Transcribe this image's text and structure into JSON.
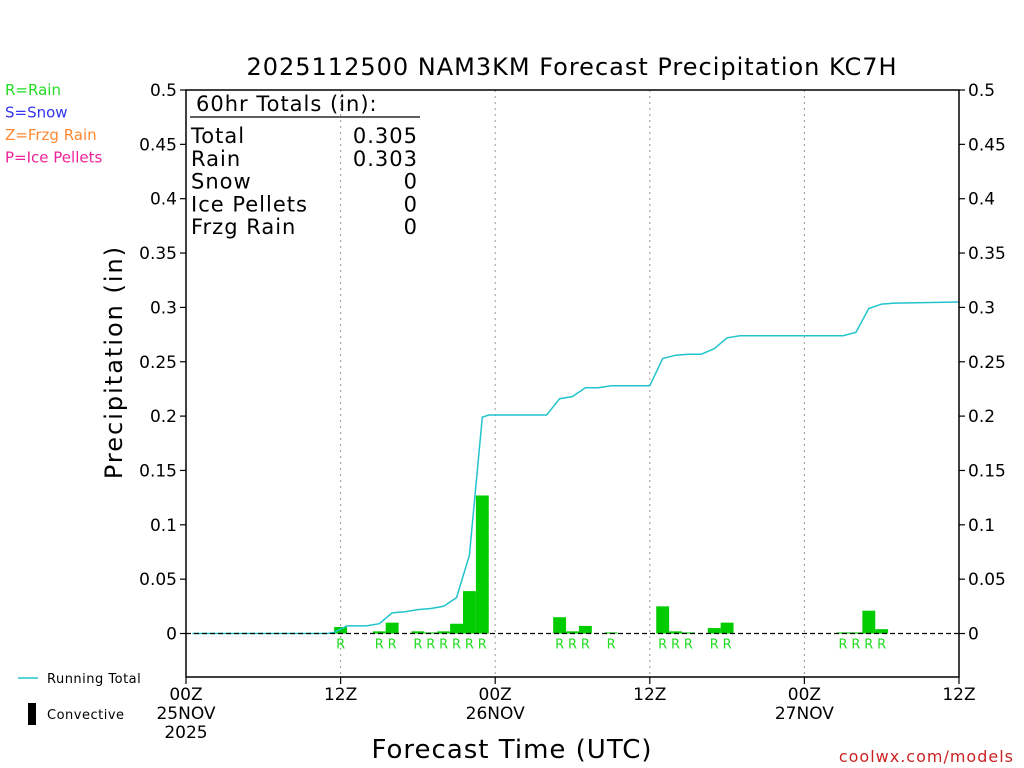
{
  "chart_data": {
    "type": "bar",
    "title": "2025112500 NAM3KM Forecast Precipitation KC7H",
    "xlabel": "Forecast Time (UTC)",
    "ylabel": "Precipitation (in)",
    "ylim": [
      -0.04,
      0.5
    ],
    "xlim": [
      0,
      60
    ],
    "y_ticks": [
      0,
      0.05,
      0.1,
      0.15,
      0.2,
      0.25,
      0.3,
      0.35,
      0.4,
      0.45,
      0.5
    ],
    "y_tick_labels": [
      "0",
      "0.05",
      "0.1",
      "0.15",
      "0.2",
      "0.25",
      "0.3",
      "0.35",
      "0.4",
      "0.45",
      "0.5"
    ],
    "x_ticks": [
      {
        "hour": 0,
        "lines": [
          "00Z",
          "25NOV",
          "2025"
        ]
      },
      {
        "hour": 12,
        "lines": [
          "12Z"
        ]
      },
      {
        "hour": 24,
        "lines": [
          "00Z",
          "26NOV"
        ]
      },
      {
        "hour": 36,
        "lines": [
          "12Z"
        ]
      },
      {
        "hour": 48,
        "lines": [
          "00Z",
          "27NOV"
        ]
      },
      {
        "hour": 60,
        "lines": [
          "12Z"
        ]
      }
    ],
    "gridlines_x": [
      12,
      24,
      36,
      48
    ],
    "legend_types": [
      {
        "code": "R=Rain",
        "color": "#22dd22"
      },
      {
        "code": "S=Snow",
        "color": "#3333ee"
      },
      {
        "code": "Z=Frzg Rain",
        "color": "#ff8833"
      },
      {
        "code": "P=Ice Pellets",
        "color": "#ee2299"
      }
    ],
    "legend_series": [
      {
        "name": "Running Total",
        "color": "#22c4cc",
        "kind": "line"
      },
      {
        "name": "Convective",
        "color": "#000000",
        "kind": "bar"
      }
    ],
    "bar_color": "#00cc00",
    "line_color": "#22c4cc",
    "totals_box": {
      "heading": "60hr Totals (in):",
      "rows": [
        {
          "label": "Total",
          "value": "0.305"
        },
        {
          "label": "Rain",
          "value": "0.303"
        },
        {
          "label": "Snow",
          "value": "0"
        },
        {
          "label": "Ice Pellets",
          "value": "0"
        },
        {
          "label": "Frzg Rain",
          "value": "0"
        }
      ]
    },
    "bars": [
      {
        "hour": 12,
        "value": 0.006,
        "type": "R"
      },
      {
        "hour": 15,
        "value": 0.002,
        "type": "R"
      },
      {
        "hour": 16,
        "value": 0.01,
        "type": "R"
      },
      {
        "hour": 18,
        "value": 0.002,
        "type": "R"
      },
      {
        "hour": 19,
        "value": 0.001,
        "type": "R"
      },
      {
        "hour": 20,
        "value": 0.002,
        "type": "R"
      },
      {
        "hour": 21,
        "value": 0.009,
        "type": "R"
      },
      {
        "hour": 22,
        "value": 0.039,
        "type": "R"
      },
      {
        "hour": 23,
        "value": 0.127,
        "type": "R"
      },
      {
        "hour": 29,
        "value": 0.015,
        "type": "R"
      },
      {
        "hour": 30,
        "value": 0.002,
        "type": "R"
      },
      {
        "hour": 31,
        "value": 0.007,
        "type": "R"
      },
      {
        "hour": 33,
        "value": 0.001,
        "type": "R"
      },
      {
        "hour": 37,
        "value": 0.025,
        "type": "R"
      },
      {
        "hour": 38,
        "value": 0.002,
        "type": "R"
      },
      {
        "hour": 39,
        "value": 0.001,
        "type": "R"
      },
      {
        "hour": 41,
        "value": 0.005,
        "type": "R"
      },
      {
        "hour": 42,
        "value": 0.01,
        "type": "R"
      },
      {
        "hour": 51,
        "value": 0.001,
        "type": "R"
      },
      {
        "hour": 52,
        "value": 0.001,
        "type": "R"
      },
      {
        "hour": 53,
        "value": 0.021,
        "type": "R"
      },
      {
        "hour": 54,
        "value": 0.004,
        "type": "R"
      }
    ],
    "running_total": [
      [
        0.5,
        0
      ],
      [
        11,
        0
      ],
      [
        11.5,
        0.001
      ],
      [
        12.5,
        0.007
      ],
      [
        14,
        0.007
      ],
      [
        15,
        0.009
      ],
      [
        16,
        0.019
      ],
      [
        17,
        0.02
      ],
      [
        18,
        0.022
      ],
      [
        19,
        0.023
      ],
      [
        20,
        0.025
      ],
      [
        21,
        0.033
      ],
      [
        22,
        0.072
      ],
      [
        23,
        0.199
      ],
      [
        23.5,
        0.201
      ],
      [
        28,
        0.201
      ],
      [
        29,
        0.216
      ],
      [
        30,
        0.218
      ],
      [
        31,
        0.226
      ],
      [
        32,
        0.226
      ],
      [
        33,
        0.228
      ],
      [
        34,
        0.228
      ],
      [
        36,
        0.228
      ],
      [
        37,
        0.253
      ],
      [
        38,
        0.256
      ],
      [
        39,
        0.257
      ],
      [
        40,
        0.257
      ],
      [
        41,
        0.262
      ],
      [
        42,
        0.272
      ],
      [
        43,
        0.274
      ],
      [
        51,
        0.274
      ],
      [
        52,
        0.277
      ],
      [
        53,
        0.299
      ],
      [
        54,
        0.303
      ],
      [
        55,
        0.304
      ],
      [
        60,
        0.305
      ]
    ]
  },
  "watermark": "coolwx.com/models"
}
